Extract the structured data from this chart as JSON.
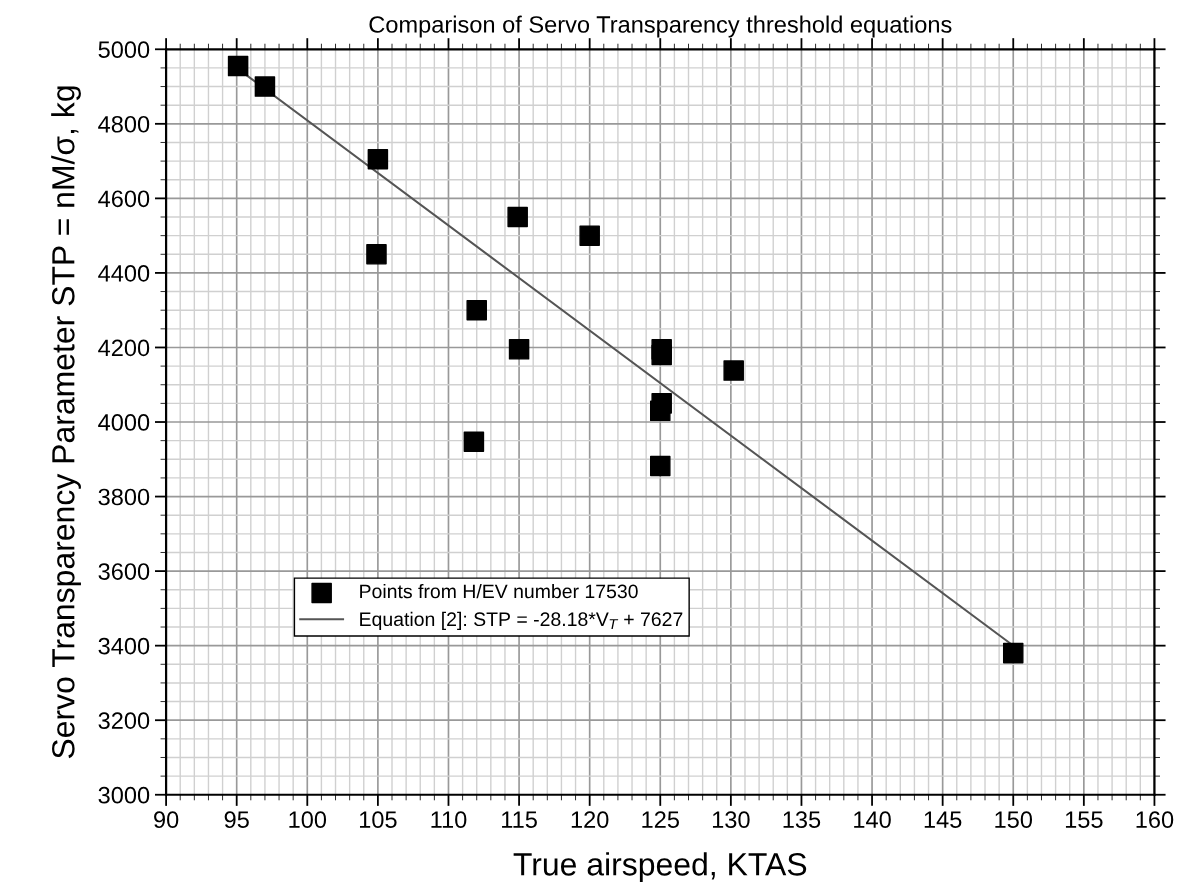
{
  "chart_data": {
    "type": "scatter",
    "title": "Comparison of Servo Transparency threshold equations",
    "xlabel": "True airspeed, KTAS",
    "ylabel": "Servo Transparency Parameter STP = nM/σ, kg",
    "series": [
      {
        "name": "Points from H/EV number 17530",
        "marker": "square",
        "color": "#000000",
        "x": [
          95.1,
          97.0,
          105.0,
          104.9,
          112.0,
          114.9,
          115.0,
          111.8,
          120.0,
          125.1,
          125.1,
          130.2,
          125.1,
          125.0,
          125.0,
          150.0
        ],
        "values": [
          4955,
          4900,
          4705,
          4450,
          4300,
          4550,
          4195,
          3947,
          4500,
          4195,
          4180,
          4138,
          4050,
          4030,
          3882,
          3380
        ]
      },
      {
        "name": "Equation [2]: STP = -28.18*V$_{T}$ + 7627",
        "type": "line",
        "line_style": "solid",
        "color": "#555555",
        "x": [
          95,
          150
        ],
        "values": [
          4950,
          3400
        ]
      }
    ],
    "xlim": [
      90,
      160
    ],
    "xticks": [
      90,
      95,
      100,
      105,
      110,
      115,
      120,
      125,
      130,
      135,
      140,
      145,
      150,
      155,
      160
    ],
    "ylim": [
      3000,
      5000
    ],
    "yticks": [
      3000,
      3200,
      3400,
      3600,
      3800,
      4000,
      4200,
      4400,
      4600,
      4800,
      5000
    ],
    "grid": true,
    "legend": "bottom left"
  }
}
